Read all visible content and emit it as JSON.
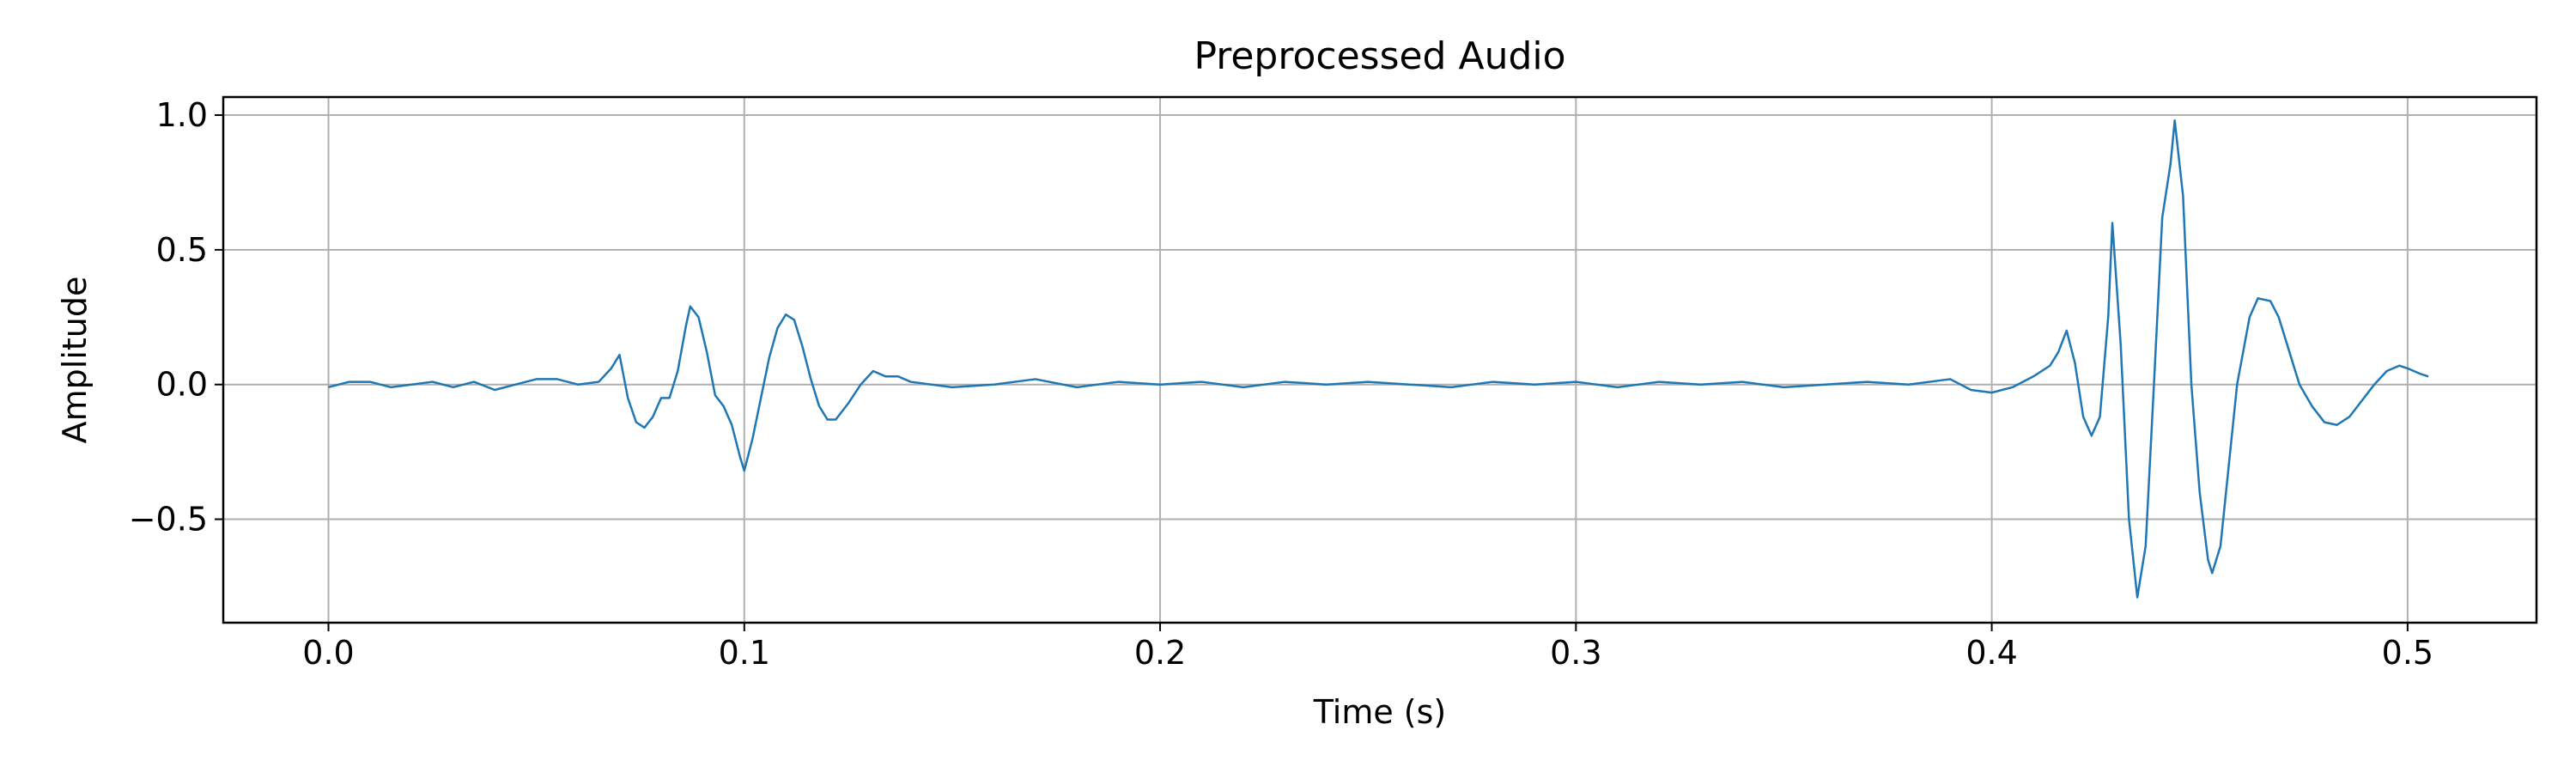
{
  "chart_data": {
    "type": "line",
    "title": "Preprocessed Audio",
    "xlabel": "Time (s)",
    "ylabel": "Amplitude",
    "color": "#1f77b4",
    "grid": true,
    "xlim": [
      -0.0253,
      0.531
    ],
    "ylim": [
      -0.884,
      1.067
    ],
    "xticks": [
      {
        "value": 0,
        "label": "0.0"
      },
      0.1,
      0.2,
      0.3,
      0.4,
      0.5
    ],
    "yticks": [
      {
        "value": -0.5,
        "label": "−0.5"
      },
      {
        "value": 0,
        "label": "0.0"
      },
      0.5,
      {
        "value": 1,
        "label": "1.0"
      }
    ],
    "x": [
      0,
      0.005,
      0.01,
      0.015,
      0.02,
      0.025,
      0.03,
      0.035,
      0.04,
      0.045,
      0.05,
      0.055,
      0.06,
      0.065,
      0.068,
      0.07,
      0.072,
      0.074,
      0.076,
      0.078,
      0.08,
      0.082,
      0.084,
      0.086,
      0.087,
      0.089,
      0.091,
      0.093,
      0.095,
      0.097,
      0.099,
      0.1,
      0.102,
      0.104,
      0.106,
      0.108,
      0.11,
      0.112,
      0.114,
      0.116,
      0.118,
      0.12,
      0.122,
      0.125,
      0.128,
      0.131,
      0.134,
      0.137,
      0.14,
      0.15,
      0.16,
      0.17,
      0.18,
      0.19,
      0.2,
      0.21,
      0.22,
      0.23,
      0.24,
      0.25,
      0.26,
      0.27,
      0.28,
      0.29,
      0.3,
      0.31,
      0.32,
      0.33,
      0.34,
      0.35,
      0.36,
      0.37,
      0.38,
      0.39,
      0.395,
      0.4,
      0.405,
      0.41,
      0.414,
      0.416,
      0.418,
      0.42,
      0.422,
      0.424,
      0.426,
      0.428,
      0.429,
      0.431,
      0.433,
      0.435,
      0.437,
      0.439,
      0.441,
      0.443,
      0.444,
      0.446,
      0.448,
      0.45,
      0.452,
      0.453,
      0.455,
      0.457,
      0.459,
      0.462,
      0.464,
      0.467,
      0.469,
      0.472,
      0.474,
      0.477,
      0.48,
      0.483,
      0.486,
      0.489,
      0.492,
      0.495,
      0.498,
      0.5,
      0.503,
      0.505
    ],
    "values": [
      -0.01,
      0.01,
      0.01,
      -0.01,
      0.0,
      0.01,
      -0.01,
      0.01,
      -0.02,
      0.0,
      0.02,
      0.02,
      0.0,
      0.01,
      0.06,
      0.11,
      -0.05,
      -0.14,
      -0.16,
      -0.12,
      -0.05,
      -0.05,
      0.05,
      0.22,
      0.29,
      0.25,
      0.12,
      -0.04,
      -0.08,
      -0.15,
      -0.27,
      -0.32,
      -0.2,
      -0.05,
      0.1,
      0.21,
      0.26,
      0.24,
      0.14,
      0.02,
      -0.08,
      -0.13,
      -0.13,
      -0.07,
      0.0,
      0.05,
      0.03,
      0.03,
      0.01,
      -0.01,
      0.0,
      0.02,
      -0.01,
      0.01,
      0.0,
      0.01,
      -0.01,
      0.01,
      0.0,
      0.01,
      0.0,
      -0.01,
      0.01,
      0.0,
      0.01,
      -0.01,
      0.01,
      0.0,
      0.01,
      -0.01,
      0.0,
      0.01,
      0.0,
      0.02,
      -0.02,
      -0.03,
      -0.01,
      0.03,
      0.07,
      0.12,
      0.2,
      0.08,
      -0.12,
      -0.19,
      -0.12,
      0.25,
      0.6,
      0.15,
      -0.5,
      -0.79,
      -0.6,
      0.0,
      0.62,
      0.82,
      0.98,
      0.7,
      0.0,
      -0.4,
      -0.65,
      -0.7,
      -0.6,
      -0.3,
      0.0,
      0.25,
      0.32,
      0.31,
      0.25,
      0.1,
      0.0,
      -0.08,
      -0.14,
      -0.15,
      -0.12,
      -0.06,
      0.0,
      0.05,
      0.07,
      0.06,
      0.04,
      0.03
    ]
  }
}
